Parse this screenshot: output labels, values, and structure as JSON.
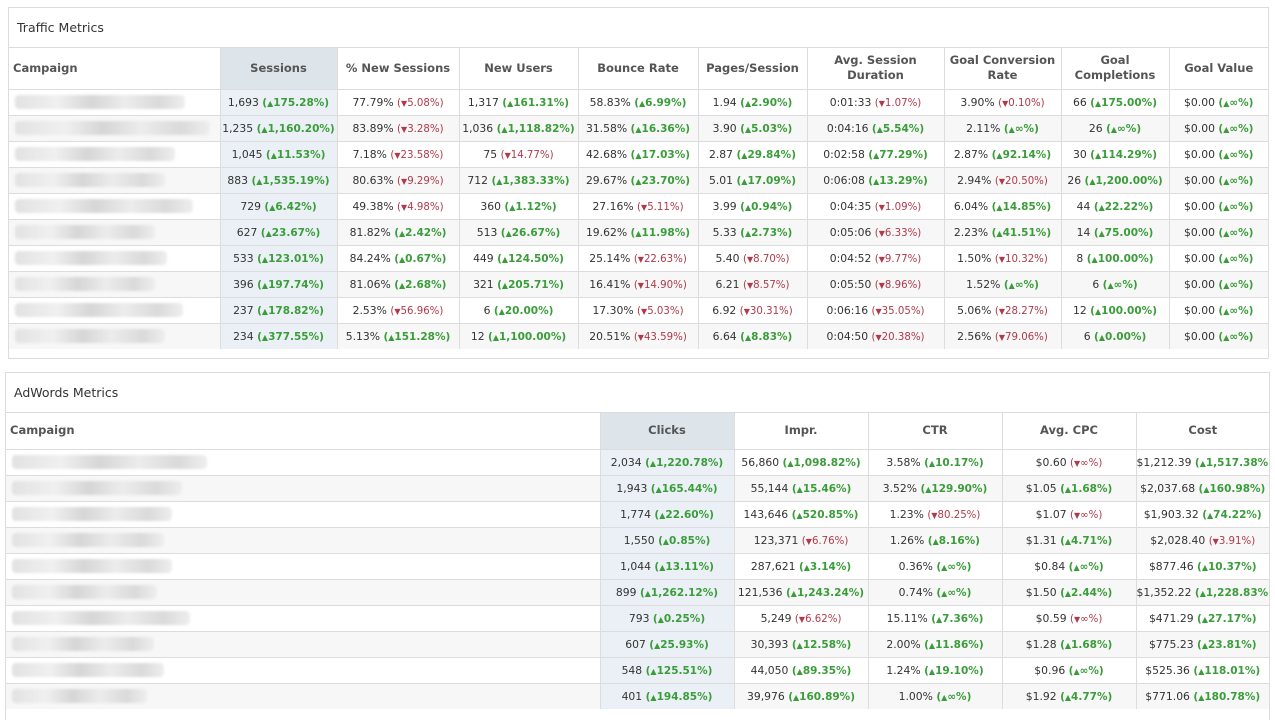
{
  "traffic": {
    "title": "Traffic Metrics",
    "columns": [
      "Campaign",
      "Sessions",
      "% New Sessions",
      "New Users",
      "Bounce Rate",
      "Pages/Session",
      "Avg. Session Duration",
      "Goal Conversion Rate",
      "Goal Completions",
      "Goal Value"
    ],
    "rows": [
      [
        [
          "1,693",
          "up",
          "175.28%"
        ],
        [
          "77.79%",
          "down",
          "5.08%"
        ],
        [
          "1,317",
          "up",
          "161.31%"
        ],
        [
          "58.83%",
          "up",
          "6.99%"
        ],
        [
          "1.94",
          "up",
          "2.90%"
        ],
        [
          "0:01:33",
          "down",
          "1.07%"
        ],
        [
          "3.90%",
          "down",
          "0.10%"
        ],
        [
          "66",
          "up",
          "175.00%"
        ],
        [
          "$0.00",
          "up",
          "∞%"
        ]
      ],
      [
        [
          "1,235",
          "up",
          "1,160.20%"
        ],
        [
          "83.89%",
          "down",
          "3.28%"
        ],
        [
          "1,036",
          "up",
          "1,118.82%"
        ],
        [
          "31.58%",
          "up",
          "16.36%"
        ],
        [
          "3.90",
          "up",
          "5.03%"
        ],
        [
          "0:04:16",
          "up",
          "5.54%"
        ],
        [
          "2.11%",
          "up",
          "∞%"
        ],
        [
          "26",
          "up",
          "∞%"
        ],
        [
          "$0.00",
          "up",
          "∞%"
        ]
      ],
      [
        [
          "1,045",
          "up",
          "11.53%"
        ],
        [
          "7.18%",
          "down",
          "23.58%"
        ],
        [
          "75",
          "down",
          "14.77%"
        ],
        [
          "42.68%",
          "up",
          "17.03%"
        ],
        [
          "2.87",
          "up",
          "29.84%"
        ],
        [
          "0:02:58",
          "up",
          "77.29%"
        ],
        [
          "2.87%",
          "up",
          "92.14%"
        ],
        [
          "30",
          "up",
          "114.29%"
        ],
        [
          "$0.00",
          "up",
          "∞%"
        ]
      ],
      [
        [
          "883",
          "up",
          "1,535.19%"
        ],
        [
          "80.63%",
          "down",
          "9.29%"
        ],
        [
          "712",
          "up",
          "1,383.33%"
        ],
        [
          "29.67%",
          "up",
          "23.70%"
        ],
        [
          "5.01",
          "up",
          "17.09%"
        ],
        [
          "0:06:08",
          "up",
          "13.29%"
        ],
        [
          "2.94%",
          "down",
          "20.50%"
        ],
        [
          "26",
          "up",
          "1,200.00%"
        ],
        [
          "$0.00",
          "up",
          "∞%"
        ]
      ],
      [
        [
          "729",
          "up",
          "6.42%"
        ],
        [
          "49.38%",
          "down",
          "4.98%"
        ],
        [
          "360",
          "up",
          "1.12%"
        ],
        [
          "27.16%",
          "down",
          "5.11%"
        ],
        [
          "3.99",
          "up",
          "0.94%"
        ],
        [
          "0:04:35",
          "down",
          "1.09%"
        ],
        [
          "6.04%",
          "up",
          "14.85%"
        ],
        [
          "44",
          "up",
          "22.22%"
        ],
        [
          "$0.00",
          "up",
          "∞%"
        ]
      ],
      [
        [
          "627",
          "up",
          "23.67%"
        ],
        [
          "81.82%",
          "up",
          "2.42%"
        ],
        [
          "513",
          "up",
          "26.67%"
        ],
        [
          "19.62%",
          "up",
          "11.98%"
        ],
        [
          "5.33",
          "up",
          "2.73%"
        ],
        [
          "0:05:06",
          "down",
          "6.33%"
        ],
        [
          "2.23%",
          "up",
          "41.51%"
        ],
        [
          "14",
          "up",
          "75.00%"
        ],
        [
          "$0.00",
          "up",
          "∞%"
        ]
      ],
      [
        [
          "533",
          "up",
          "123.01%"
        ],
        [
          "84.24%",
          "up",
          "0.67%"
        ],
        [
          "449",
          "up",
          "124.50%"
        ],
        [
          "25.14%",
          "down",
          "22.63%"
        ],
        [
          "5.40",
          "down",
          "8.70%"
        ],
        [
          "0:04:52",
          "down",
          "9.77%"
        ],
        [
          "1.50%",
          "down",
          "10.32%"
        ],
        [
          "8",
          "up",
          "100.00%"
        ],
        [
          "$0.00",
          "up",
          "∞%"
        ]
      ],
      [
        [
          "396",
          "up",
          "197.74%"
        ],
        [
          "81.06%",
          "up",
          "2.68%"
        ],
        [
          "321",
          "up",
          "205.71%"
        ],
        [
          "16.41%",
          "down",
          "14.90%"
        ],
        [
          "6.21",
          "down",
          "8.57%"
        ],
        [
          "0:05:50",
          "down",
          "8.96%"
        ],
        [
          "1.52%",
          "up",
          "∞%"
        ],
        [
          "6",
          "up",
          "∞%"
        ],
        [
          "$0.00",
          "up",
          "∞%"
        ]
      ],
      [
        [
          "237",
          "up",
          "178.82%"
        ],
        [
          "2.53%",
          "down",
          "56.96%"
        ],
        [
          "6",
          "up",
          "20.00%"
        ],
        [
          "17.30%",
          "down",
          "5.03%"
        ],
        [
          "6.92",
          "down",
          "30.31%"
        ],
        [
          "0:06:16",
          "down",
          "35.05%"
        ],
        [
          "5.06%",
          "down",
          "28.27%"
        ],
        [
          "12",
          "up",
          "100.00%"
        ],
        [
          "$0.00",
          "up",
          "∞%"
        ]
      ],
      [
        [
          "234",
          "up",
          "377.55%"
        ],
        [
          "5.13%",
          "up",
          "151.28%"
        ],
        [
          "12",
          "up",
          "1,100.00%"
        ],
        [
          "20.51%",
          "down",
          "43.59%"
        ],
        [
          "6.64",
          "up",
          "8.83%"
        ],
        [
          "0:04:50",
          "down",
          "20.38%"
        ],
        [
          "2.56%",
          "down",
          "79.06%"
        ],
        [
          "6",
          "up",
          "0.00%"
        ],
        [
          "$0.00",
          "up",
          "∞%"
        ]
      ]
    ]
  },
  "adwords": {
    "title": "AdWords Metrics",
    "columns": [
      "Campaign",
      "Clicks",
      "Impr.",
      "CTR",
      "Avg. CPC",
      "Cost"
    ],
    "rows": [
      [
        [
          "2,034",
          "up",
          "1,220.78%"
        ],
        [
          "56,860",
          "up",
          "1,098.82%"
        ],
        [
          "3.58%",
          "up",
          "10.17%"
        ],
        [
          "$0.60",
          "down",
          "∞%"
        ],
        [
          "$1,212.39",
          "up",
          "1,517.38%"
        ]
      ],
      [
        [
          "1,943",
          "up",
          "165.44%"
        ],
        [
          "55,144",
          "up",
          "15.46%"
        ],
        [
          "3.52%",
          "up",
          "129.90%"
        ],
        [
          "$1.05",
          "up",
          "1.68%"
        ],
        [
          "$2,037.68",
          "up",
          "160.98%"
        ]
      ],
      [
        [
          "1,774",
          "up",
          "22.60%"
        ],
        [
          "143,646",
          "up",
          "520.85%"
        ],
        [
          "1.23%",
          "down",
          "80.25%"
        ],
        [
          "$1.07",
          "down",
          "∞%"
        ],
        [
          "$1,903.32",
          "up",
          "74.22%"
        ]
      ],
      [
        [
          "1,550",
          "up",
          "0.85%"
        ],
        [
          "123,371",
          "down",
          "6.76%"
        ],
        [
          "1.26%",
          "up",
          "8.16%"
        ],
        [
          "$1.31",
          "up",
          "4.71%"
        ],
        [
          "$2,028.40",
          "down",
          "3.91%"
        ]
      ],
      [
        [
          "1,044",
          "up",
          "13.11%"
        ],
        [
          "287,621",
          "up",
          "3.14%"
        ],
        [
          "0.36%",
          "up",
          "∞%"
        ],
        [
          "$0.84",
          "up",
          "∞%"
        ],
        [
          "$877.46",
          "up",
          "10.37%"
        ]
      ],
      [
        [
          "899",
          "up",
          "1,262.12%"
        ],
        [
          "121,536",
          "up",
          "1,243.24%"
        ],
        [
          "0.74%",
          "up",
          "∞%"
        ],
        [
          "$1.50",
          "up",
          "2.44%"
        ],
        [
          "$1,352.22",
          "up",
          "1,228.83%"
        ]
      ],
      [
        [
          "793",
          "up",
          "0.25%"
        ],
        [
          "5,249",
          "down",
          "6.62%"
        ],
        [
          "15.11%",
          "up",
          "7.36%"
        ],
        [
          "$0.59",
          "down",
          "∞%"
        ],
        [
          "$471.29",
          "up",
          "27.17%"
        ]
      ],
      [
        [
          "607",
          "up",
          "25.93%"
        ],
        [
          "30,393",
          "up",
          "12.58%"
        ],
        [
          "2.00%",
          "up",
          "11.86%"
        ],
        [
          "$1.28",
          "up",
          "1.68%"
        ],
        [
          "$775.23",
          "up",
          "23.81%"
        ]
      ],
      [
        [
          "548",
          "up",
          "125.51%"
        ],
        [
          "44,050",
          "up",
          "89.35%"
        ],
        [
          "1.24%",
          "up",
          "19.10%"
        ],
        [
          "$0.96",
          "up",
          "∞%"
        ],
        [
          "$525.36",
          "up",
          "118.01%"
        ]
      ],
      [
        [
          "401",
          "up",
          "194.85%"
        ],
        [
          "39,976",
          "up",
          "160.89%"
        ],
        [
          "1.00%",
          "up",
          "∞%"
        ],
        [
          "$1.92",
          "up",
          "4.77%"
        ],
        [
          "$771.06",
          "up",
          "180.78%"
        ]
      ]
    ]
  },
  "icons": {
    "up": "▲",
    "down": "▼"
  },
  "colors": {
    "up": "#3a9d3a",
    "down": "#b03a4a",
    "highlight_header": "#dde4ea",
    "highlight_cell": "#eaf0f5"
  }
}
